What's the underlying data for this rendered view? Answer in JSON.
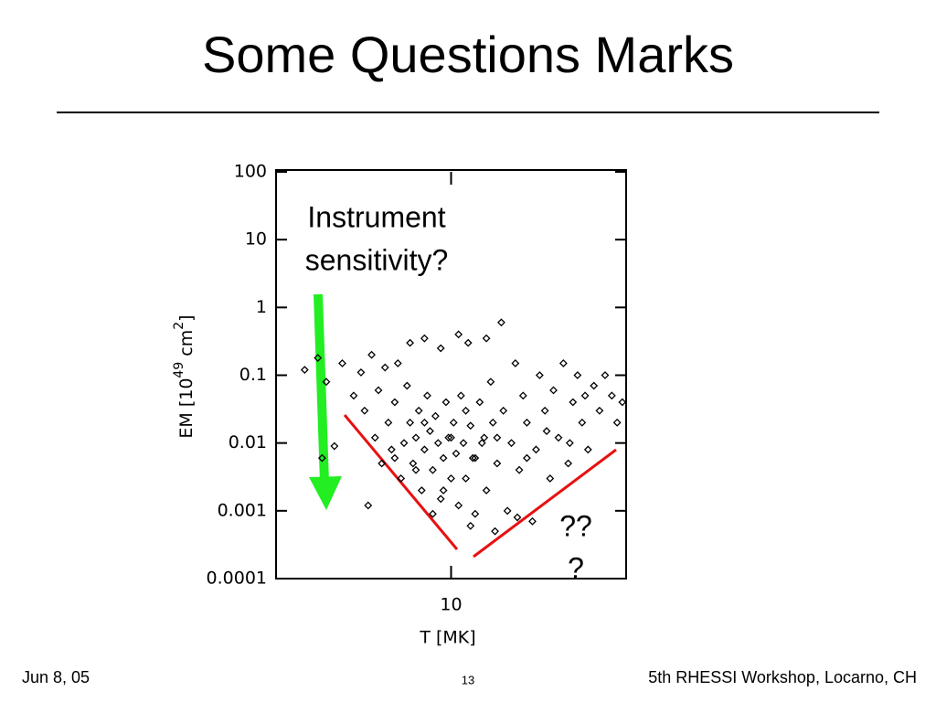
{
  "header": {
    "title": "Some Questions Marks"
  },
  "footer": {
    "date": "Jun 8, 05",
    "page": "13",
    "event": "5th RHESSI Workshop, Locarno, CH"
  },
  "chart_data": {
    "type": "scatter",
    "xlabel": "T [MK]",
    "ylabel_parts": [
      "EM [10",
      "49",
      " cm",
      "2",
      "]"
    ],
    "xlog": true,
    "ylog": true,
    "xlim": [
      5,
      20
    ],
    "ylim": [
      0.0001,
      100
    ],
    "xticks": [
      10
    ],
    "yticks": [
      100,
      10,
      1,
      0.1,
      0.01,
      0.001,
      0.0001
    ],
    "color": "#000000",
    "annotations": [
      "Instrument",
      "sensitivity?",
      "??",
      "?"
    ],
    "x": [
      5.6,
      5.9,
      6.1,
      6.3,
      6.5,
      6.8,
      7.0,
      7.1,
      7.3,
      7.4,
      7.5,
      7.6,
      7.7,
      7.8,
      7.9,
      8.0,
      8.1,
      8.2,
      8.3,
      8.4,
      8.5,
      8.6,
      8.7,
      8.8,
      8.9,
      9.0,
      9.1,
      9.2,
      9.3,
      9.4,
      9.5,
      9.6,
      9.7,
      9.8,
      9.9,
      10.0,
      10.1,
      10.2,
      10.3,
      10.4,
      10.5,
      10.6,
      10.7,
      10.8,
      10.9,
      11.0,
      11.2,
      11.4,
      11.5,
      11.7,
      11.8,
      12.0,
      12.2,
      12.3,
      12.5,
      12.7,
      12.9,
      13.1,
      13.3,
      13.5,
      13.8,
      14.0,
      14.2,
      14.5,
      14.8,
      15.0,
      15.3,
      15.6,
      15.9,
      16.2,
      16.5,
      16.8,
      17.2,
      17.6,
      18.0,
      18.4,
      18.9,
      19.3,
      19.7,
      8.5,
      9.0,
      9.6,
      10.3,
      11.5,
      7.2,
      8.0,
      9.3,
      10.8,
      11.9,
      13.0,
      12.0,
      11.0,
      10.0,
      9.0,
      8.7,
      9.7,
      10.6,
      11.3,
      13.5,
      14.6,
      16.0,
      17.0,
      6.0
    ],
    "values": [
      0.12,
      0.18,
      0.08,
      0.009,
      0.15,
      0.05,
      0.11,
      0.03,
      0.2,
      0.012,
      0.06,
      0.005,
      0.13,
      0.02,
      0.008,
      0.04,
      0.15,
      0.003,
      0.01,
      0.07,
      0.02,
      0.005,
      0.012,
      0.03,
      0.002,
      0.008,
      0.05,
      0.015,
      0.004,
      0.025,
      0.01,
      0.0015,
      0.006,
      0.04,
      0.012,
      0.003,
      0.02,
      0.007,
      0.0012,
      0.05,
      0.01,
      0.003,
      0.3,
      0.018,
      0.006,
      0.0009,
      0.04,
      0.012,
      0.002,
      0.08,
      0.02,
      0.005,
      0.6,
      0.03,
      0.001,
      0.01,
      0.15,
      0.004,
      0.05,
      0.02,
      0.0007,
      0.008,
      0.1,
      0.03,
      0.003,
      0.06,
      0.012,
      0.15,
      0.005,
      0.04,
      0.1,
      0.02,
      0.008,
      0.07,
      0.03,
      0.1,
      0.05,
      0.02,
      0.04,
      0.3,
      0.35,
      0.25,
      0.4,
      0.35,
      0.0012,
      0.006,
      0.0009,
      0.0006,
      0.0005,
      0.0008,
      0.012,
      0.006,
      0.012,
      0.02,
      0.004,
      0.002,
      0.03,
      0.01,
      0.006,
      0.015,
      0.01,
      0.05,
      0.006
    ]
  }
}
